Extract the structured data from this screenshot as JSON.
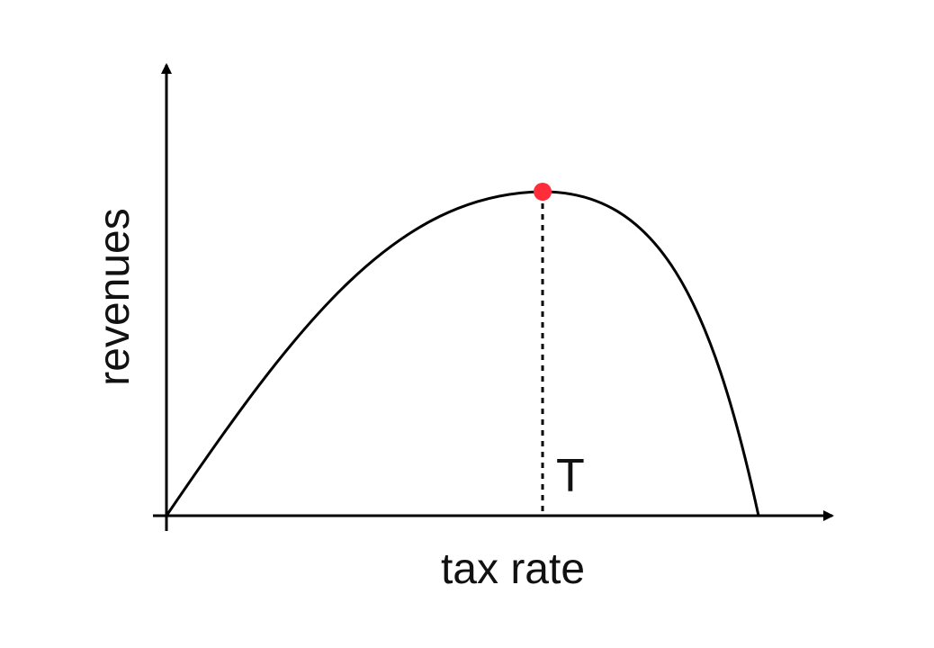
{
  "diagram": {
    "title": "",
    "x_axis_label": "tax rate",
    "y_axis_label": "revenues",
    "peak_label": "T",
    "colors": {
      "line": "#000000",
      "peak_point": "#ff2d3a",
      "background": "#ffffff"
    },
    "curve_description_note": ""
  }
}
